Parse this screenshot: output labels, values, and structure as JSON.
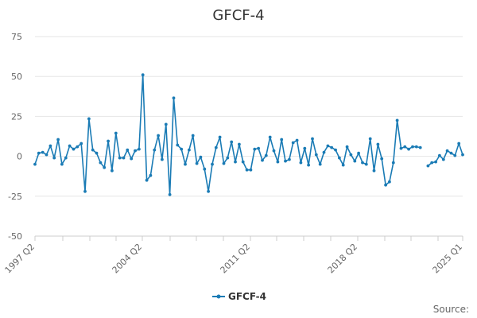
{
  "chart_data": {
    "type": "line",
    "title": "GFCF-4",
    "xlabel": "",
    "ylabel": "",
    "ylim": [
      -50,
      75
    ],
    "y_ticks": [
      "75",
      "50",
      "25",
      "0",
      "-25",
      "-50"
    ],
    "x_ticks": [
      "1997 Q2",
      "2004 Q2",
      "2011 Q2",
      "2018 Q2",
      "2025 Q1"
    ],
    "grid": true,
    "legend_position": "bottom",
    "series": [
      {
        "name": "GFCF-4",
        "color": "#1a7bb5",
        "values": [
          -5,
          2,
          2.5,
          1,
          6.5,
          -1,
          10.5,
          -5,
          -1,
          6.5,
          4.5,
          6,
          8,
          -22,
          23.5,
          4,
          2,
          -4,
          -7,
          9.5,
          -9,
          14.5,
          -1,
          -1,
          4,
          -1.5,
          3.5,
          4.5,
          51,
          -15,
          -12,
          4,
          13,
          -2,
          20,
          -24,
          36.5,
          7,
          4.5,
          -5,
          4,
          13,
          -4.5,
          -0.5,
          -8,
          -22,
          -5,
          5.5,
          12,
          -4.5,
          -1,
          9,
          -3.5,
          7.5,
          -3.5,
          -8.5,
          -8.5,
          4.5,
          5,
          -2.5,
          0.5,
          12,
          3.5,
          -3.5,
          10.5,
          -3,
          -2,
          8.5,
          10,
          -4,
          5,
          -5.5,
          11,
          1,
          -5,
          2.5,
          6.5,
          5.5,
          4,
          -1,
          -5.5,
          6,
          1,
          -3,
          2,
          -4,
          -5,
          11,
          -9,
          7.5,
          -1.5,
          -18,
          -16,
          -4,
          22.5,
          5,
          6,
          4.5,
          6,
          6,
          5.5,
          null,
          -6,
          -4,
          -3.5,
          0.5,
          -2,
          3.5,
          2,
          0.5,
          8,
          1
        ]
      }
    ]
  },
  "source_label": "Source:"
}
